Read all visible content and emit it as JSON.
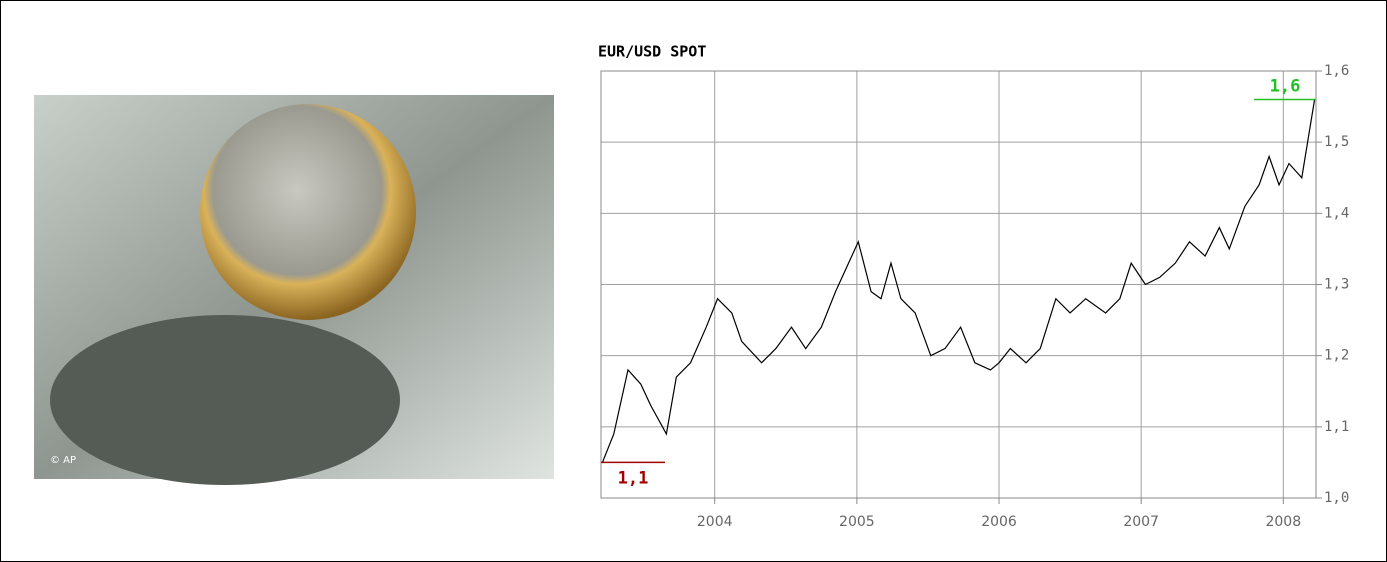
{
  "photo": {
    "credit": "© AP"
  },
  "chart_data": {
    "type": "line",
    "title": "EUR/USD SPOT",
    "x": [
      2003.21,
      2003.29,
      2003.39,
      2003.48,
      2003.55,
      2003.66,
      2003.73,
      2003.83,
      2003.94,
      2004.02,
      2004.12,
      2004.19,
      2004.33,
      2004.43,
      2004.54,
      2004.64,
      2004.75,
      2004.85,
      2005.01,
      2005.1,
      2005.17,
      2005.24,
      2005.31,
      2005.41,
      2005.52,
      2005.62,
      2005.73,
      2005.83,
      2005.94,
      2006.0,
      2006.08,
      2006.19,
      2006.29,
      2006.4,
      2006.5,
      2006.61,
      2006.75,
      2006.85,
      2006.93,
      2007.03,
      2007.13,
      2007.24,
      2007.34,
      2007.45,
      2007.55,
      2007.62,
      2007.73,
      2007.83,
      2007.9,
      2007.97,
      2008.04,
      2008.13,
      2008.22
    ],
    "series": [
      {
        "color": "#000000",
        "values": [
          1.05,
          1.09,
          1.18,
          1.16,
          1.13,
          1.09,
          1.17,
          1.19,
          1.24,
          1.28,
          1.26,
          1.22,
          1.19,
          1.21,
          1.24,
          1.21,
          1.24,
          1.29,
          1.36,
          1.29,
          1.28,
          1.33,
          1.28,
          1.26,
          1.2,
          1.21,
          1.24,
          1.19,
          1.18,
          1.19,
          1.21,
          1.19,
          1.21,
          1.28,
          1.26,
          1.28,
          1.26,
          1.28,
          1.33,
          1.3,
          1.31,
          1.33,
          1.36,
          1.34,
          1.38,
          1.35,
          1.41,
          1.44,
          1.48,
          1.44,
          1.47,
          1.45,
          1.56
        ]
      }
    ],
    "xlim": [
      2003.2,
      2008.23
    ],
    "xticks": [
      2004,
      2005,
      2006,
      2007,
      2008
    ],
    "ylim": [
      1.0,
      1.6
    ],
    "yticks": [
      {
        "value": 1.0,
        "label": "1,0"
      },
      {
        "value": 1.1,
        "label": "1,1"
      },
      {
        "value": 1.2,
        "label": "1,2"
      },
      {
        "value": 1.3,
        "label": "1,3"
      },
      {
        "value": 1.4,
        "label": "1,4"
      },
      {
        "value": 1.5,
        "label": "1,5"
      },
      {
        "value": 1.6,
        "label": "1,6"
      }
    ],
    "grid": true,
    "annotations": [
      {
        "label": "1,1",
        "value": 1.05,
        "color": "#a00000"
      },
      {
        "label": "1,6",
        "value": 1.56,
        "color": "#22c022"
      }
    ]
  }
}
